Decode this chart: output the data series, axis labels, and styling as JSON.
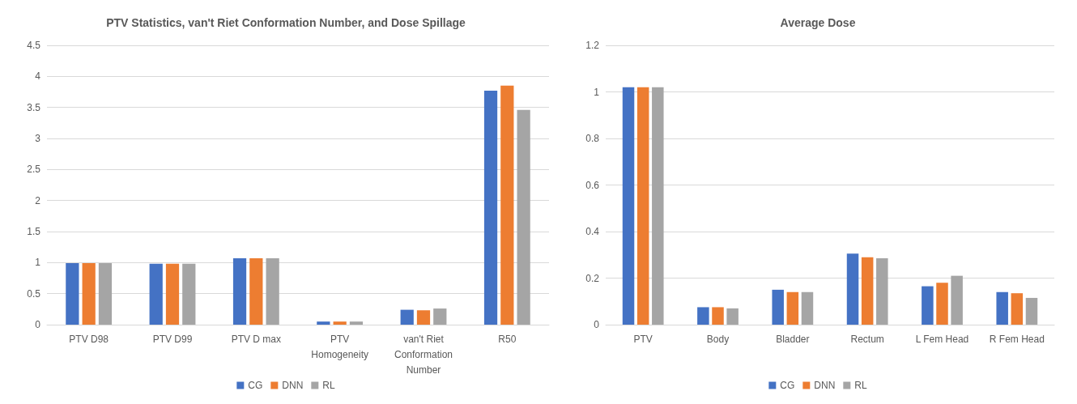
{
  "chart_data": [
    {
      "type": "bar",
      "title": "PTV Statistics, van't Riet Conformation Number, and Dose Spillage",
      "categories": [
        "PTV D98",
        "PTV D99",
        "PTV D max",
        "PTV\nHomogeneity",
        "van't Riet\nConformation\nNumber",
        "R50"
      ],
      "series": [
        {
          "name": "CG",
          "color": "#4472c4",
          "values": [
            0.99,
            0.98,
            1.07,
            0.05,
            0.24,
            3.77
          ]
        },
        {
          "name": "DNN",
          "color": "#ed7d31",
          "values": [
            0.99,
            0.98,
            1.07,
            0.05,
            0.23,
            3.85
          ]
        },
        {
          "name": "RL",
          "color": "#a5a5a5",
          "values": [
            0.99,
            0.98,
            1.07,
            0.05,
            0.26,
            3.46
          ]
        }
      ],
      "ylim": [
        0,
        4.5
      ],
      "yticks": [
        0,
        0.5,
        1,
        1.5,
        2,
        2.5,
        3,
        3.5,
        4,
        4.5
      ],
      "grid": "y",
      "legend": "bottom"
    },
    {
      "type": "bar",
      "title": "Average Dose",
      "categories": [
        "PTV",
        "Body",
        "Bladder",
        "Rectum",
        "L Fem Head",
        "R Fem Head"
      ],
      "series": [
        {
          "name": "CG",
          "color": "#4472c4",
          "values": [
            1.02,
            0.075,
            0.15,
            0.305,
            0.165,
            0.14
          ]
        },
        {
          "name": "DNN",
          "color": "#ed7d31",
          "values": [
            1.02,
            0.075,
            0.14,
            0.29,
            0.18,
            0.135
          ]
        },
        {
          "name": "RL",
          "color": "#a5a5a5",
          "values": [
            1.02,
            0.07,
            0.14,
            0.285,
            0.21,
            0.115
          ]
        }
      ],
      "ylim": [
        0,
        1.2
      ],
      "yticks": [
        0,
        0.2,
        0.4,
        0.6,
        0.8,
        1,
        1.2
      ],
      "grid": "y",
      "legend": "bottom"
    }
  ]
}
